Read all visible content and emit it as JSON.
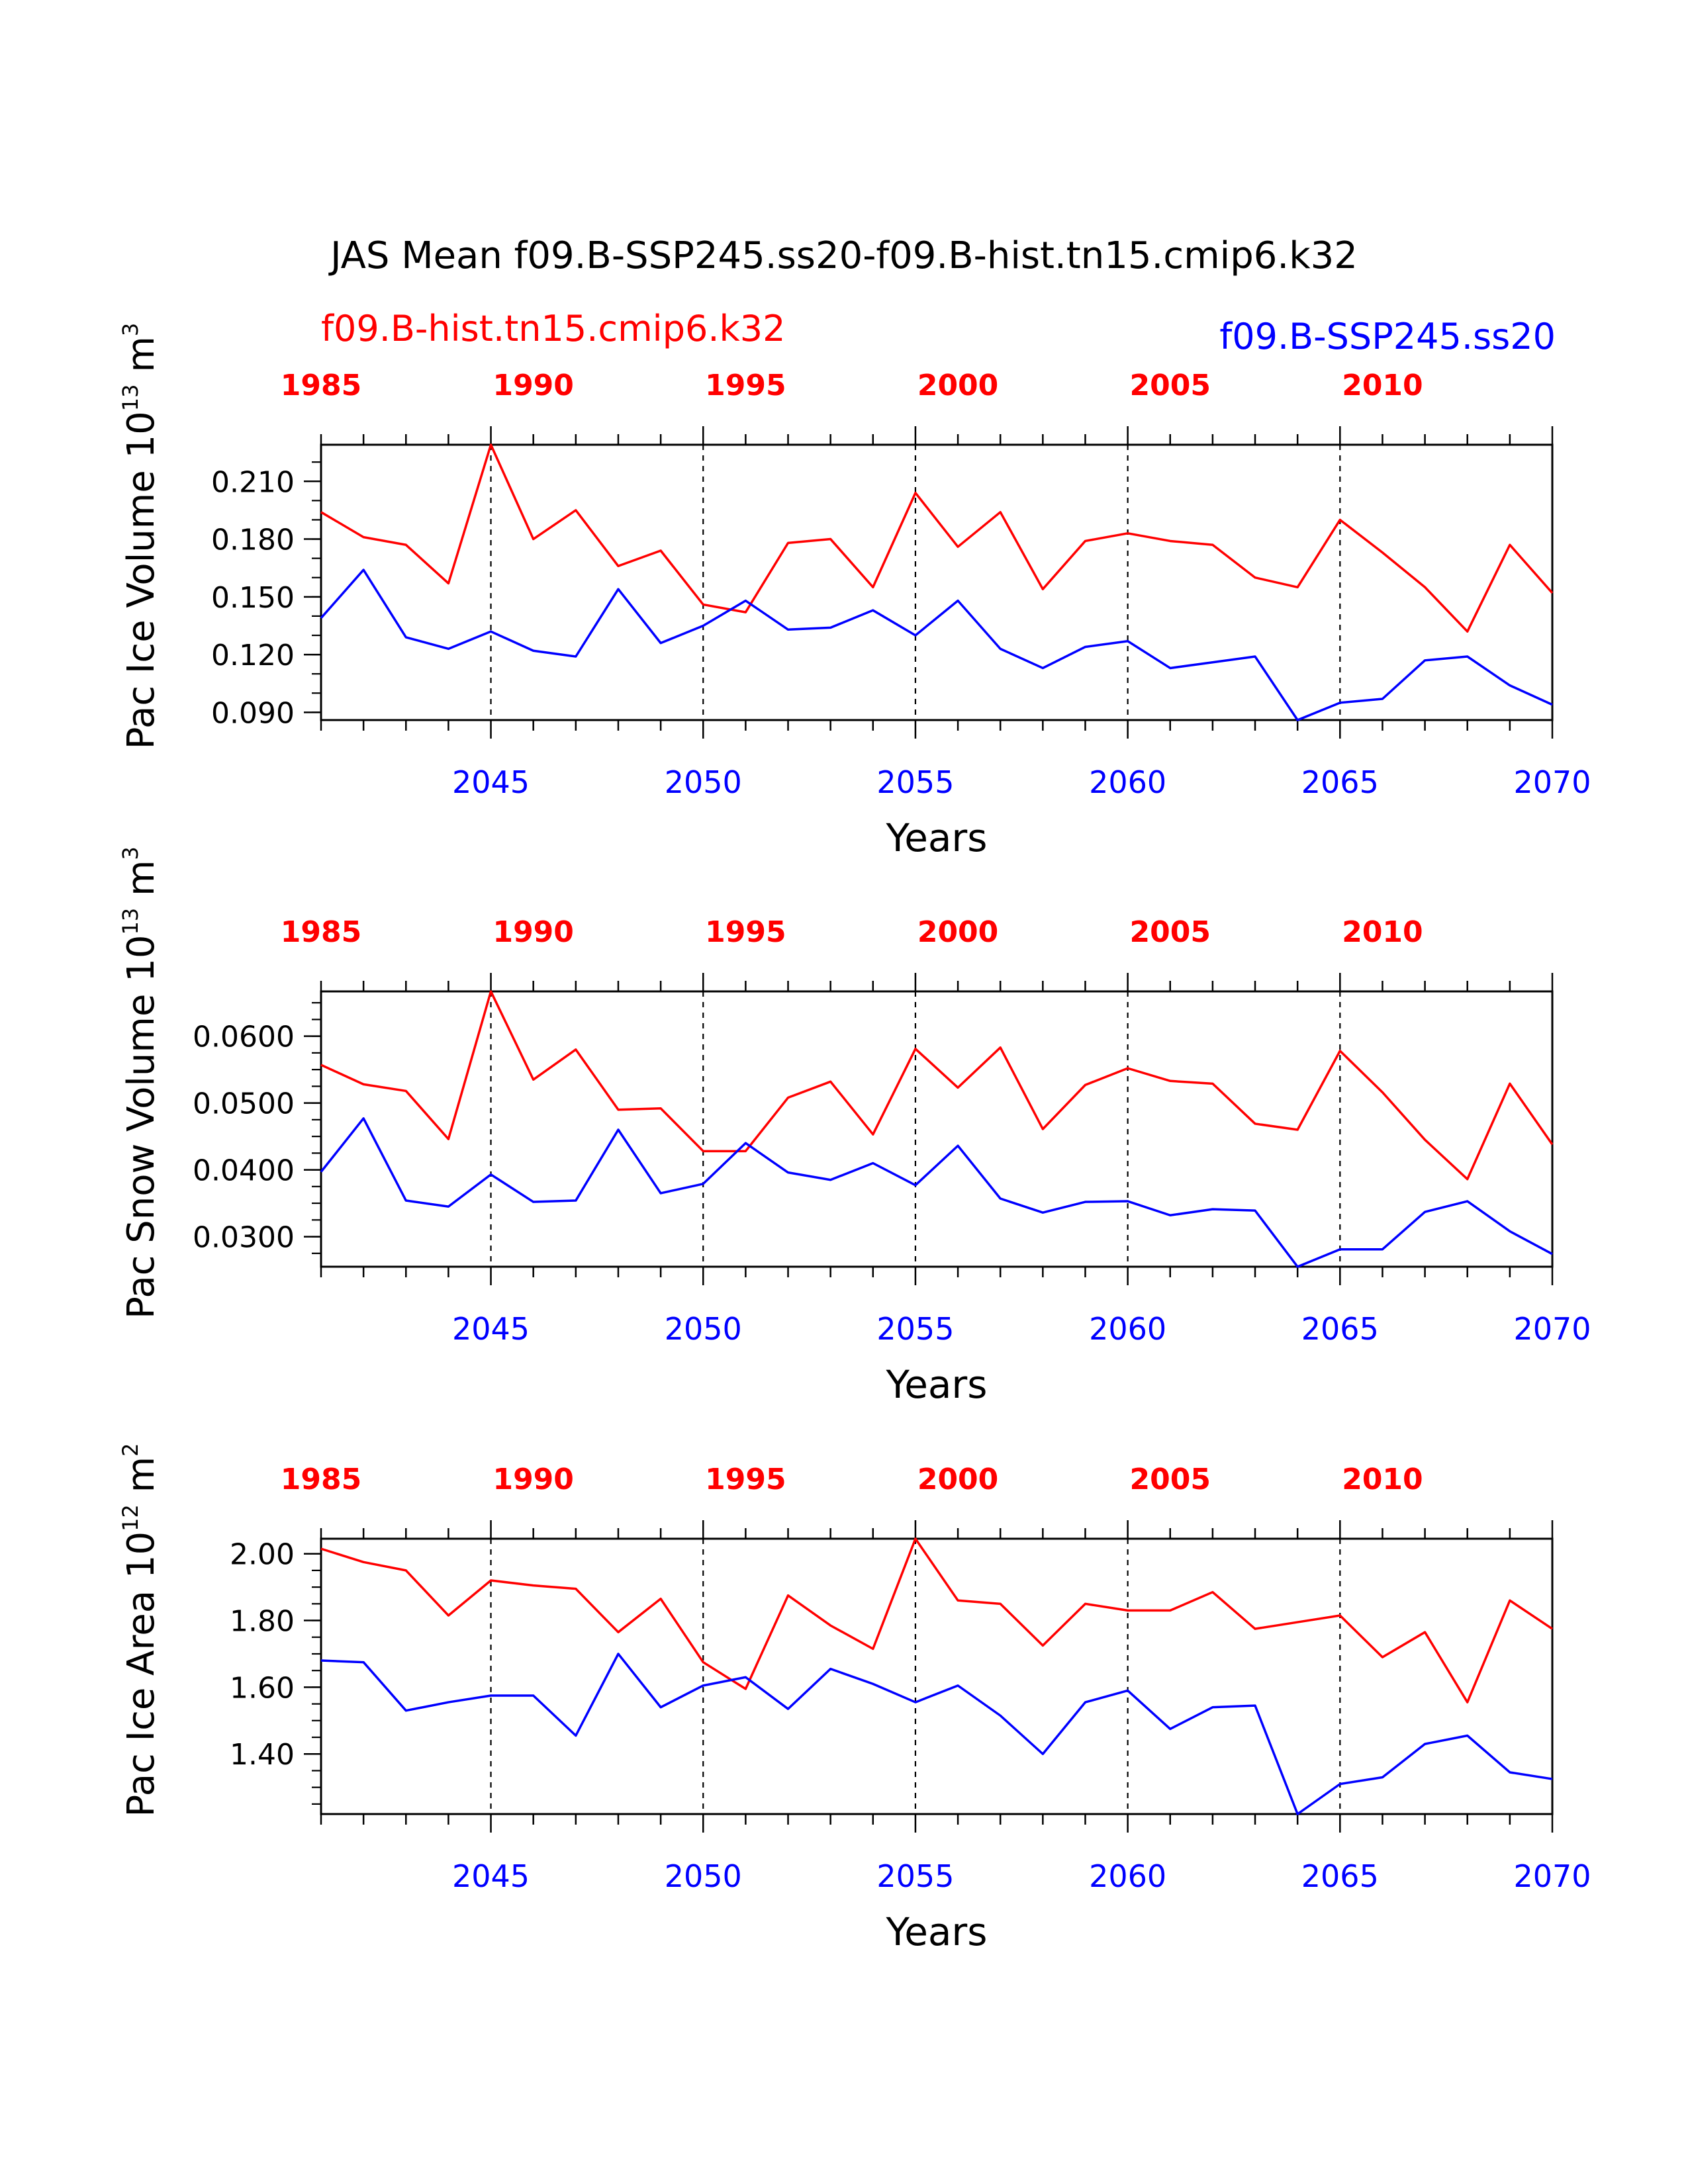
{
  "title": "JAS Mean f09.B-SSP245.ss20-f09.B-hist.tn15.cmip6.k32",
  "legend": {
    "left": "f09.B-hist.tn15.cmip6.k32",
    "right": "f09.B-SSP245.ss20"
  },
  "colors": {
    "red": "#ff0000",
    "blue": "#0000ff",
    "axis": "#000000"
  },
  "chart_data": [
    {
      "type": "line",
      "ylabel": "Pac Ice Volume 10",
      "ylabel_exp": "13",
      "ylabel_unit": "m",
      "ylabel_unit_exp": "3",
      "xlabel": "Years",
      "x_bottom": [
        2041,
        2042,
        2043,
        2044,
        2045,
        2046,
        2047,
        2048,
        2049,
        2050,
        2051,
        2052,
        2053,
        2054,
        2055,
        2056,
        2057,
        2058,
        2059,
        2060,
        2061,
        2062,
        2063,
        2064,
        2065,
        2066,
        2067,
        2068,
        2069,
        2070
      ],
      "x_top": [
        1985,
        1986,
        1987,
        1988,
        1989,
        1990,
        1991,
        1992,
        1993,
        1994,
        1995,
        1996,
        1997,
        1998,
        1999,
        2000,
        2001,
        2002,
        2003,
        2004,
        2005,
        2006,
        2007,
        2008,
        2009,
        2010,
        2011,
        2012,
        2013,
        2014
      ],
      "xlim": [
        2041,
        2070
      ],
      "bottom_ticks": [
        "2045",
        "2050",
        "2055",
        "2060",
        "2065",
        "2070"
      ],
      "top_ticks": [
        "1985",
        "1990",
        "1995",
        "2000",
        "2005",
        "2010"
      ],
      "top_tick_values": [
        1985,
        1990,
        1995,
        2000,
        2005,
        2010
      ],
      "ylim": [
        0.086,
        0.229
      ],
      "yticks": [
        0.09,
        0.12,
        0.15,
        0.18,
        0.21
      ],
      "ytick_labels": [
        "0.090",
        "0.120",
        "0.150",
        "0.180",
        "0.210"
      ],
      "yminor_step": 0.01,
      "series": [
        {
          "color": "red",
          "axis": "top",
          "values": [
            0.194,
            0.181,
            0.177,
            0.157,
            0.229,
            0.18,
            0.195,
            0.166,
            0.174,
            0.146,
            0.142,
            0.178,
            0.18,
            0.155,
            0.204,
            0.176,
            0.194,
            0.154,
            0.179,
            0.183,
            0.179,
            0.177,
            0.16,
            0.155,
            0.19,
            0.173,
            0.155,
            0.132,
            0.177,
            0.152
          ]
        },
        {
          "color": "blue",
          "axis": "bottom",
          "values": [
            0.139,
            0.164,
            0.129,
            0.123,
            0.132,
            0.122,
            0.119,
            0.154,
            0.126,
            0.135,
            0.148,
            0.133,
            0.134,
            0.143,
            0.13,
            0.148,
            0.123,
            0.113,
            0.124,
            0.127,
            0.113,
            0.116,
            0.119,
            0.086,
            0.095,
            0.097,
            0.117,
            0.119,
            0.104,
            0.094
          ]
        }
      ]
    },
    {
      "type": "line",
      "ylabel": "Pac Snow Volume 10",
      "ylabel_exp": "13",
      "ylabel_unit": "m",
      "ylabel_unit_exp": "3",
      "xlabel": "Years",
      "x_bottom": [
        2041,
        2042,
        2043,
        2044,
        2045,
        2046,
        2047,
        2048,
        2049,
        2050,
        2051,
        2052,
        2053,
        2054,
        2055,
        2056,
        2057,
        2058,
        2059,
        2060,
        2061,
        2062,
        2063,
        2064,
        2065,
        2066,
        2067,
        2068,
        2069,
        2070
      ],
      "x_top": [
        1985,
        1986,
        1987,
        1988,
        1989,
        1990,
        1991,
        1992,
        1993,
        1994,
        1995,
        1996,
        1997,
        1998,
        1999,
        2000,
        2001,
        2002,
        2003,
        2004,
        2005,
        2006,
        2007,
        2008,
        2009,
        2010,
        2011,
        2012,
        2013,
        2014
      ],
      "xlim": [
        2041,
        2070
      ],
      "bottom_ticks": [
        "2045",
        "2050",
        "2055",
        "2060",
        "2065",
        "2070"
      ],
      "top_ticks": [
        "1985",
        "1990",
        "1995",
        "2000",
        "2005",
        "2010"
      ],
      "top_tick_values": [
        1985,
        1990,
        1995,
        2000,
        2005,
        2010
      ],
      "ylim": [
        0.0255,
        0.0667
      ],
      "yticks": [
        0.03,
        0.04,
        0.05,
        0.06
      ],
      "ytick_labels": [
        "0.0300",
        "0.0400",
        "0.0500",
        "0.0600"
      ],
      "yminor_step": 0.0025,
      "series": [
        {
          "color": "red",
          "axis": "top",
          "values": [
            0.0557,
            0.0528,
            0.0518,
            0.0446,
            0.0667,
            0.0535,
            0.058,
            0.049,
            0.0492,
            0.0428,
            0.0428,
            0.0508,
            0.0532,
            0.0453,
            0.0581,
            0.0523,
            0.0583,
            0.0461,
            0.0527,
            0.0552,
            0.0533,
            0.0529,
            0.0469,
            0.046,
            0.0578,
            0.0516,
            0.0445,
            0.0386,
            0.0529,
            0.0438
          ]
        },
        {
          "color": "blue",
          "axis": "bottom",
          "values": [
            0.0397,
            0.0477,
            0.0354,
            0.0345,
            0.0393,
            0.0352,
            0.0354,
            0.046,
            0.0365,
            0.0379,
            0.044,
            0.0396,
            0.0385,
            0.041,
            0.0377,
            0.0436,
            0.0357,
            0.0336,
            0.0352,
            0.0353,
            0.0332,
            0.0341,
            0.0339,
            0.0255,
            0.0281,
            0.0281,
            0.0337,
            0.0353,
            0.0308,
            0.0274
          ]
        }
      ]
    },
    {
      "type": "line",
      "ylabel": "Pac Ice Area 10",
      "ylabel_exp": "12",
      "ylabel_unit": "m",
      "ylabel_unit_exp": "2",
      "xlabel": "Years",
      "x_bottom": [
        2041,
        2042,
        2043,
        2044,
        2045,
        2046,
        2047,
        2048,
        2049,
        2050,
        2051,
        2052,
        2053,
        2054,
        2055,
        2056,
        2057,
        2058,
        2059,
        2060,
        2061,
        2062,
        2063,
        2064,
        2065,
        2066,
        2067,
        2068,
        2069,
        2070
      ],
      "x_top": [
        1985,
        1986,
        1987,
        1988,
        1989,
        1990,
        1991,
        1992,
        1993,
        1994,
        1995,
        1996,
        1997,
        1998,
        1999,
        2000,
        2001,
        2002,
        2003,
        2004,
        2005,
        2006,
        2007,
        2008,
        2009,
        2010,
        2011,
        2012,
        2013,
        2014
      ],
      "xlim": [
        2041,
        2070
      ],
      "bottom_ticks": [
        "2045",
        "2050",
        "2055",
        "2060",
        "2065",
        "2070"
      ],
      "top_ticks": [
        "1985",
        "1990",
        "1995",
        "2000",
        "2005",
        "2010"
      ],
      "top_tick_values": [
        1985,
        1990,
        1995,
        2000,
        2005,
        2010
      ],
      "ylim": [
        1.22,
        2.045
      ],
      "yticks": [
        1.4,
        1.6,
        1.8,
        2.0
      ],
      "ytick_labels": [
        "1.40",
        "1.60",
        "1.80",
        "2.00"
      ],
      "yminor_step": 0.05,
      "series": [
        {
          "color": "red",
          "axis": "top",
          "values": [
            2.015,
            1.975,
            1.95,
            1.815,
            1.92,
            1.905,
            1.895,
            1.765,
            1.865,
            1.675,
            1.595,
            1.875,
            1.785,
            1.715,
            2.045,
            1.86,
            1.85,
            1.725,
            1.85,
            1.83,
            1.83,
            1.885,
            1.775,
            1.795,
            1.815,
            1.69,
            1.765,
            1.555,
            1.86,
            1.775
          ]
        },
        {
          "color": "blue",
          "axis": "bottom",
          "values": [
            1.68,
            1.675,
            1.53,
            1.555,
            1.575,
            1.575,
            1.455,
            1.7,
            1.54,
            1.605,
            1.63,
            1.535,
            1.655,
            1.61,
            1.555,
            1.605,
            1.515,
            1.4,
            1.555,
            1.59,
            1.475,
            1.54,
            1.545,
            1.22,
            1.31,
            1.33,
            1.43,
            1.455,
            1.345,
            1.325
          ]
        }
      ]
    }
  ]
}
